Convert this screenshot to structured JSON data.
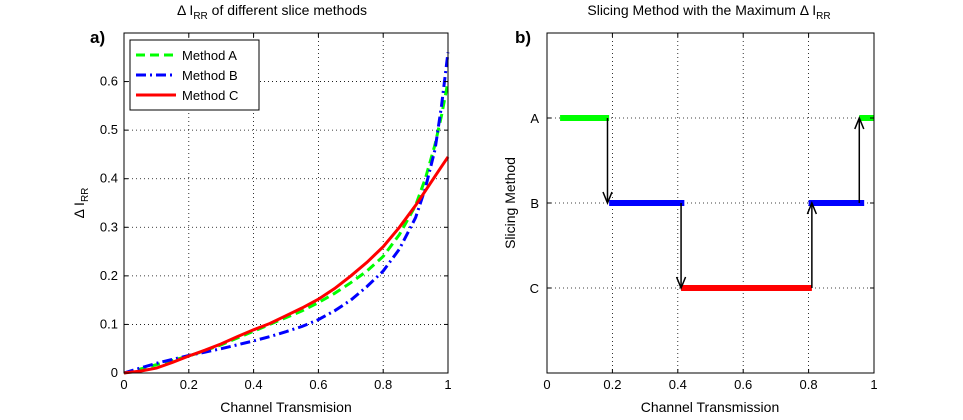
{
  "chart_data": [
    {
      "type": "line",
      "panel_label": "a)",
      "title": {
        "main": "Δ I",
        "sub": "RR",
        "tail": " of different slice methods"
      },
      "xlabel": "Channel Transmision",
      "ylabel": {
        "main": "Δ I",
        "sub": "RR"
      },
      "xlim": [
        0,
        1
      ],
      "ylim": [
        0,
        0.7
      ],
      "xticks": [
        0,
        0.2,
        0.4,
        0.6,
        0.8,
        1
      ],
      "xtick_labels": [
        "0",
        "0.2",
        "0.4",
        "0.6",
        "0.8",
        "1"
      ],
      "yticks": [
        0,
        0.1,
        0.2,
        0.3,
        0.4,
        0.5,
        0.6
      ],
      "ytick_labels": [
        "0",
        "0.1",
        "0.2",
        "0.3",
        "0.4",
        "0.5",
        "0.6"
      ],
      "grid": true,
      "legend_position": "top-left",
      "series": [
        {
          "name": "Method A",
          "color": "#00ff00",
          "style": "dashed",
          "x": [
            0,
            0.05,
            0.1,
            0.15,
            0.2,
            0.25,
            0.3,
            0.35,
            0.4,
            0.45,
            0.5,
            0.55,
            0.6,
            0.65,
            0.7,
            0.75,
            0.8,
            0.85,
            0.9,
            0.93,
            0.96,
            0.98,
            1.0
          ],
          "y": [
            0,
            0.008,
            0.017,
            0.026,
            0.035,
            0.046,
            0.058,
            0.072,
            0.086,
            0.1,
            0.114,
            0.128,
            0.145,
            0.164,
            0.186,
            0.21,
            0.24,
            0.285,
            0.345,
            0.4,
            0.47,
            0.53,
            0.6
          ]
        },
        {
          "name": "Method B",
          "color": "#0000ff",
          "style": "dashdot",
          "x": [
            0,
            0.05,
            0.1,
            0.15,
            0.2,
            0.25,
            0.3,
            0.35,
            0.4,
            0.45,
            0.5,
            0.55,
            0.6,
            0.65,
            0.7,
            0.75,
            0.8,
            0.85,
            0.9,
            0.93,
            0.96,
            0.98,
            1.0
          ],
          "y": [
            0,
            0.01,
            0.02,
            0.028,
            0.036,
            0.043,
            0.05,
            0.058,
            0.066,
            0.075,
            0.085,
            0.096,
            0.11,
            0.128,
            0.15,
            0.178,
            0.21,
            0.255,
            0.32,
            0.38,
            0.46,
            0.55,
            0.66
          ]
        },
        {
          "name": "Method C",
          "color": "#ff0000",
          "style": "solid",
          "x": [
            0,
            0.05,
            0.1,
            0.15,
            0.2,
            0.25,
            0.3,
            0.35,
            0.4,
            0.45,
            0.5,
            0.55,
            0.6,
            0.65,
            0.7,
            0.75,
            0.8,
            0.85,
            0.9,
            0.93,
            0.96,
            0.98,
            1.0
          ],
          "y": [
            0,
            0.004,
            0.01,
            0.022,
            0.035,
            0.047,
            0.06,
            0.075,
            0.089,
            0.102,
            0.118,
            0.134,
            0.152,
            0.174,
            0.2,
            0.228,
            0.26,
            0.3,
            0.345,
            0.375,
            0.405,
            0.425,
            0.445
          ]
        }
      ]
    },
    {
      "type": "step",
      "panel_label": "b)",
      "title": {
        "main": "Slicing Method with the Maximum Δ I",
        "sub": "RR"
      },
      "xlabel": "Channel Transmission",
      "ylabel": "Slicing Method",
      "xlim": [
        0,
        1
      ],
      "xticks": [
        0,
        0.2,
        0.4,
        0.6,
        0.8,
        1
      ],
      "xtick_labels": [
        "0",
        "0.2",
        "0.4",
        "0.6",
        "0.8",
        "1"
      ],
      "categories": [
        "A",
        "B",
        "C"
      ],
      "grid": true,
      "segments": [
        {
          "method": "A",
          "x_start": 0.04,
          "x_end": 0.19,
          "color": "#00ff00"
        },
        {
          "method": "B",
          "x_start": 0.19,
          "x_end": 0.42,
          "color": "#0000ff"
        },
        {
          "method": "C",
          "x_start": 0.41,
          "x_end": 0.81,
          "color": "#ff0000"
        },
        {
          "method": "B",
          "x_start": 0.8,
          "x_end": 0.97,
          "color": "#0000ff"
        },
        {
          "method": "A",
          "x_start": 0.955,
          "x_end": 1.0,
          "color": "#00ff00"
        }
      ],
      "transitions": [
        {
          "x": 0.185,
          "from": "A",
          "to": "B"
        },
        {
          "x": 0.41,
          "from": "B",
          "to": "C"
        },
        {
          "x": 0.81,
          "from": "C",
          "to": "B"
        },
        {
          "x": 0.955,
          "from": "B",
          "to": "A"
        }
      ]
    }
  ]
}
